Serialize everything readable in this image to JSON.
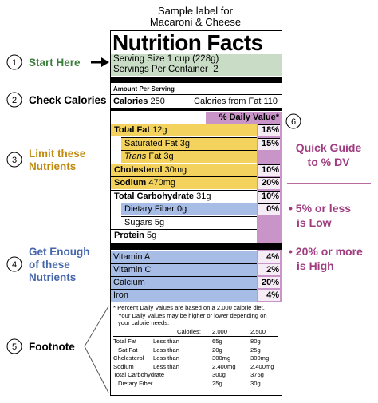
{
  "header": {
    "lines": [
      "Sample label for",
      "Macaroni & Cheese"
    ]
  },
  "callouts": [
    {
      "number": "1",
      "text": [
        "Start Here"
      ]
    },
    {
      "number": "2",
      "text": [
        "Check Calories"
      ]
    },
    {
      "number": "3",
      "text": [
        "Limit these",
        "Nutrients"
      ]
    },
    {
      "number": "4",
      "text": [
        "Get Enough",
        "of these",
        "Nutrients"
      ]
    },
    {
      "number": "5",
      "text": [
        "Footnote"
      ]
    },
    {
      "number": "6"
    }
  ],
  "quick_guide": {
    "title": [
      "Quick Guide",
      "to % DV"
    ],
    "points": [
      [
        "• 5% or less",
        "is Low"
      ],
      [
        "• 20% or more",
        "is High"
      ]
    ]
  },
  "label": {
    "title": "Nutrition Facts",
    "serving_size": "Serving Size 1 cup (228g)",
    "servings_per_container": "Servings Per Container  2",
    "amount_per_serving": "Amount Per Serving",
    "calories": {
      "label": "Calories",
      "value": "250"
    },
    "calories_from_fat": "Calories from Fat 110",
    "daily_value_header": "% Daily Value*",
    "nutrients": [
      {
        "name": "Total Fat",
        "amount": "12g",
        "dv": "18%"
      },
      {
        "name": "Saturated Fat",
        "amount": "3g",
        "dv": "15%"
      },
      {
        "name": [
          "Trans",
          "Fat"
        ],
        "amount": "3g"
      },
      {
        "name": "Cholesterol",
        "amount": "30mg",
        "dv": "10%"
      },
      {
        "name": "Sodium",
        "amount": "470mg",
        "dv": "20%"
      },
      {
        "name": "Total Carbohydrate",
        "amount": "31g",
        "dv": "10%"
      },
      {
        "name": "Dietary Fiber",
        "amount": "0g",
        "dv": "0%"
      },
      {
        "name": "Sugars",
        "amount": "5g"
      },
      {
        "name": "Protein",
        "amount": "5g"
      }
    ],
    "vitamins": [
      {
        "name": "Vitamin A",
        "dv": "4%"
      },
      {
        "name": "Vitamin C",
        "dv": "2%"
      },
      {
        "name": "Calcium",
        "dv": "20%"
      },
      {
        "name": "Iron",
        "dv": "4%"
      }
    ],
    "footnote": {
      "text": [
        "* Percent Daily Values are based on a 2,000 calorie diet.",
        "Your Daily Values may be higher or lower depending on",
        "your calorie needs."
      ],
      "table": {
        "header": {
          "label": "Calories:",
          "columns": [
            "2,000",
            "2,500"
          ]
        },
        "rows": [
          {
            "name": "Total Fat",
            "qualifier": "Less than",
            "values": [
              "65g",
              "80g"
            ]
          },
          {
            "name": "Sat Fat",
            "qualifier": "Less than",
            "values": [
              "20g",
              "25g"
            ]
          },
          {
            "name": "Cholesterol",
            "qualifier": "Less than",
            "values": [
              "300mg",
              "300mg"
            ]
          },
          {
            "name": "Sodium",
            "qualifier": "Less than",
            "values": [
              "2,400mg",
              "2,400mg"
            ]
          },
          {
            "name": "Total Carbohydrate",
            "values": [
              "300g",
              "375g"
            ]
          },
          {
            "name": "Dietary Fiber",
            "values": [
              "25g",
              "30g"
            ]
          }
        ]
      }
    }
  }
}
